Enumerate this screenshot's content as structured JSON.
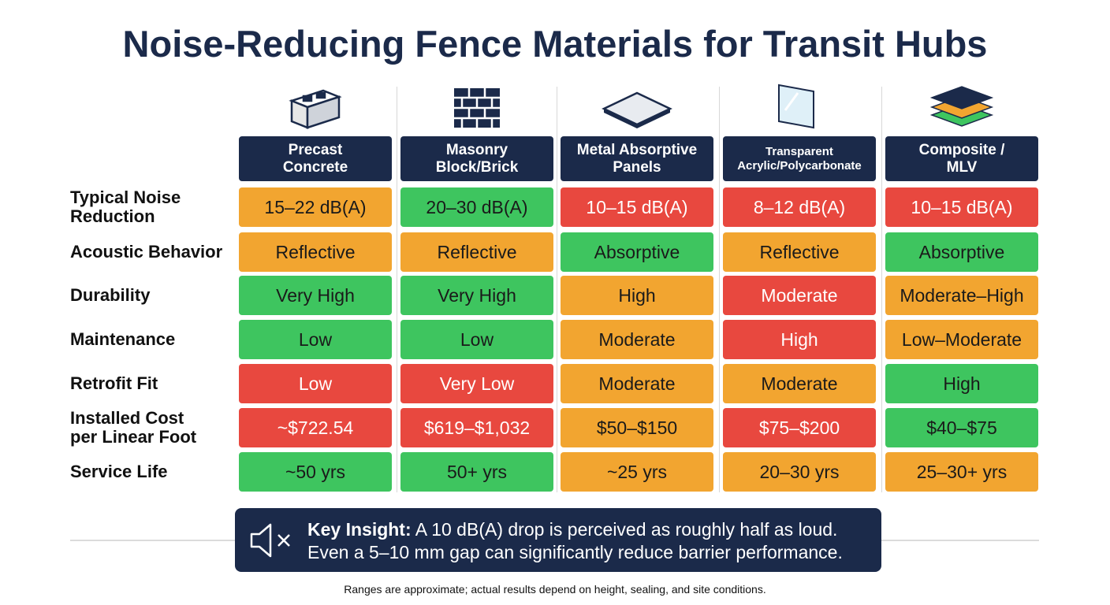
{
  "title": "Noise-Reducing Fence Materials for Transit Hubs",
  "columns": [
    "Precast\nConcrete",
    "Masonry\nBlock/Brick",
    "Metal Absorptive\nPanels",
    "Transparent\nAcrylic/Polycarbonate",
    "Composite /\nMLV"
  ],
  "rows": [
    {
      "label": "Typical Noise\nReduction",
      "cells": [
        {
          "text": "15–22 dB(A)",
          "color": "#f2a530"
        },
        {
          "text": "20–30 dB(A)",
          "color": "#3ec55f"
        },
        {
          "text": "10–15 dB(A)",
          "color": "#e8483f"
        },
        {
          "text": "8–12 dB(A)",
          "color": "#e8483f"
        },
        {
          "text": "10–15 dB(A)",
          "color": "#e8483f"
        }
      ]
    },
    {
      "label": "Acoustic Behavior",
      "cells": [
        {
          "text": "Reflective",
          "color": "#f2a530"
        },
        {
          "text": "Reflective",
          "color": "#f2a530"
        },
        {
          "text": "Absorptive",
          "color": "#3ec55f"
        },
        {
          "text": "Reflective",
          "color": "#f2a530"
        },
        {
          "text": "Absorptive",
          "color": "#3ec55f"
        }
      ]
    },
    {
      "label": "Durability",
      "cells": [
        {
          "text": "Very High",
          "color": "#3ec55f"
        },
        {
          "text": "Very High",
          "color": "#3ec55f"
        },
        {
          "text": "High",
          "color": "#f2a530"
        },
        {
          "text": "Moderate",
          "color": "#e8483f"
        },
        {
          "text": "Moderate–High",
          "color": "#f2a530"
        }
      ]
    },
    {
      "label": "Maintenance",
      "cells": [
        {
          "text": "Low",
          "color": "#3ec55f"
        },
        {
          "text": "Low",
          "color": "#3ec55f"
        },
        {
          "text": "Moderate",
          "color": "#f2a530"
        },
        {
          "text": "High",
          "color": "#e8483f"
        },
        {
          "text": "Low–Moderate",
          "color": "#f2a530"
        }
      ]
    },
    {
      "label": "Retrofit Fit",
      "cells": [
        {
          "text": "Low",
          "color": "#e8483f"
        },
        {
          "text": "Very Low",
          "color": "#e8483f"
        },
        {
          "text": "Moderate",
          "color": "#f2a530"
        },
        {
          "text": "Moderate",
          "color": "#f2a530"
        },
        {
          "text": "High",
          "color": "#3ec55f"
        }
      ]
    },
    {
      "label": "Installed Cost\nper Linear Foot",
      "cells": [
        {
          "text": "~$722.54",
          "color": "#e8483f"
        },
        {
          "text": "$619–$1,032",
          "color": "#e8483f"
        },
        {
          "text": "$50–$150",
          "color": "#f2a530"
        },
        {
          "text": "$75–$200",
          "color": "#e8483f"
        },
        {
          "text": "$40–$75",
          "color": "#3ec55f"
        }
      ]
    },
    {
      "label": "Service Life",
      "cells": [
        {
          "text": "~50 yrs",
          "color": "#3ec55f"
        },
        {
          "text": "50+ yrs",
          "color": "#3ec55f"
        },
        {
          "text": "~25 yrs",
          "color": "#f2a530"
        },
        {
          "text": "20–30 yrs",
          "color": "#f2a530"
        },
        {
          "text": "25–30+ yrs",
          "color": "#f2a530"
        }
      ]
    }
  ],
  "insight": {
    "label": "Key Insight:",
    "line1": "A 10 dB(A) drop is perceived as roughly half as loud.",
    "line2": "Even a 5–10 mm gap can significantly reduce barrier performance."
  },
  "footnote": "Ranges are approximate; actual results depend on height, sealing, and site conditions."
}
